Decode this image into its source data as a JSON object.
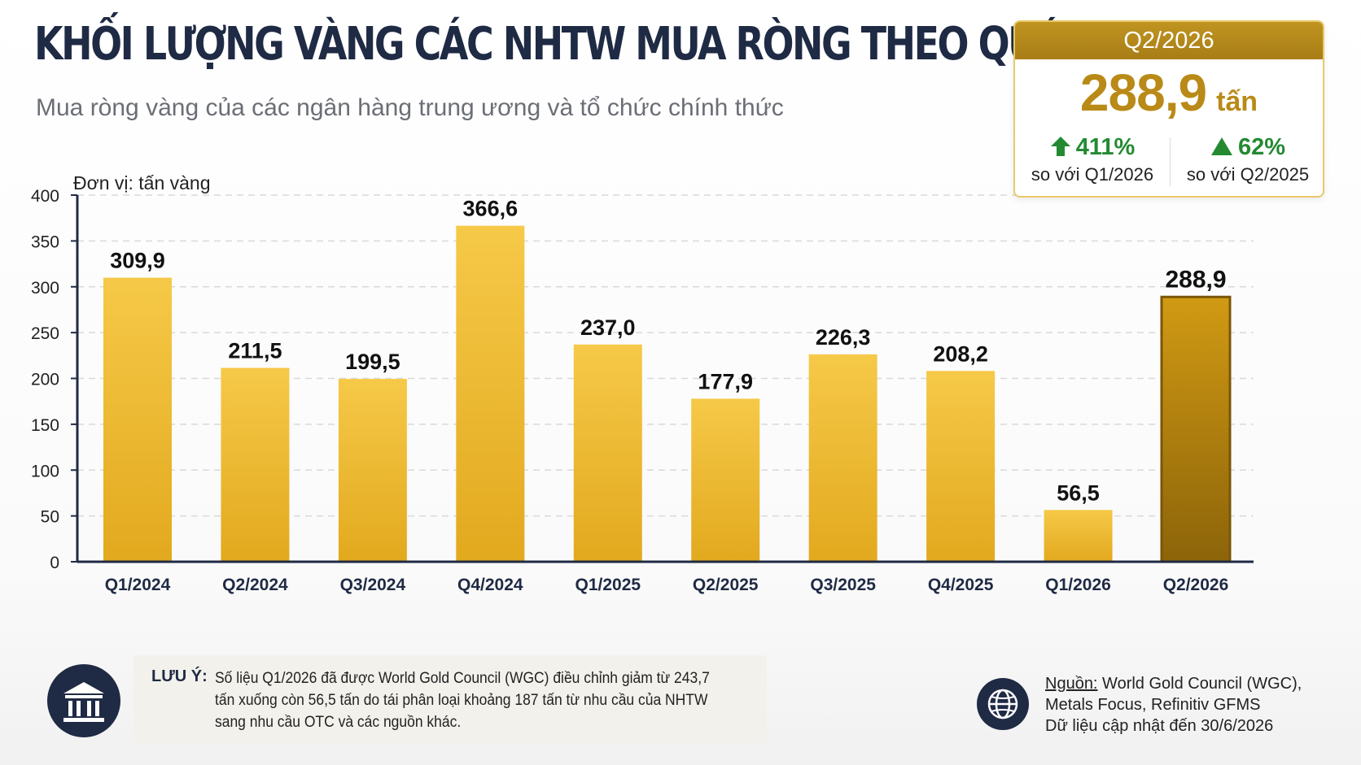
{
  "header": {
    "title": "KHỐI LƯỢNG VÀNG CÁC NHTW MUA RÒNG THEO QUÝ",
    "subtitle": "Mua ròng vàng của các ngân hàng trung ương và tổ chức chính thức"
  },
  "unit_label": "Đơn vị: tấn vàng",
  "callout": {
    "period": "Q2/2026",
    "value": "288,9",
    "unit": "tấn",
    "stats": [
      {
        "arrow": "up-arrow-icon",
        "pct": "411%",
        "compare": "so với Q1/2026"
      },
      {
        "arrow": "up-triangle-icon",
        "pct": "62%",
        "compare": "so với Q2/2025"
      }
    ]
  },
  "note": {
    "title": "LƯU Ý:",
    "text": "Số liệu Q1/2026 đã được World Gold Council (WGC) điều chỉnh giảm từ 243,7 tấn xuống còn 56,5 tấn do tái phân loại khoảng 187 tấn từ nhu cầu của NHTW sang nhu cầu OTC và các nguồn khác."
  },
  "source": {
    "label": "Nguồn:",
    "line1": " World Gold Council (WGC),",
    "line2": "Metals Focus, Refinitiv GFMS",
    "line3": "Dữ liệu cập nhật đến 30/6/2026"
  },
  "icons": {
    "note": "bank-building-icon",
    "source": "globe-icon"
  },
  "colors": {
    "navy": "#1f2a44",
    "gold": "#f0c040",
    "gold_highlight": "#b8860b",
    "green": "#238a32"
  },
  "chart_data": {
    "type": "bar",
    "categories": [
      "Q1/2024",
      "Q2/2024",
      "Q3/2024",
      "Q4/2024",
      "Q1/2025",
      "Q2/2025",
      "Q3/2025",
      "Q4/2025",
      "Q1/2026",
      "Q2/2026"
    ],
    "values": [
      309.9,
      211.5,
      199.5,
      366.6,
      237.0,
      177.9,
      226.3,
      208.2,
      56.5,
      288.9
    ],
    "value_labels": [
      "309,9",
      "211,5",
      "199,5",
      "366,6",
      "237,0",
      "177,9",
      "226,3",
      "208,2",
      "56,5",
      "288,9"
    ],
    "highlight_index": 9,
    "yticks": [
      0,
      50,
      100,
      150,
      200,
      250,
      300,
      350,
      400
    ],
    "ylim": [
      0,
      400
    ],
    "grid": true,
    "title": "",
    "xlabel": "",
    "ylabel": "Đơn vị: tấn vàng"
  }
}
